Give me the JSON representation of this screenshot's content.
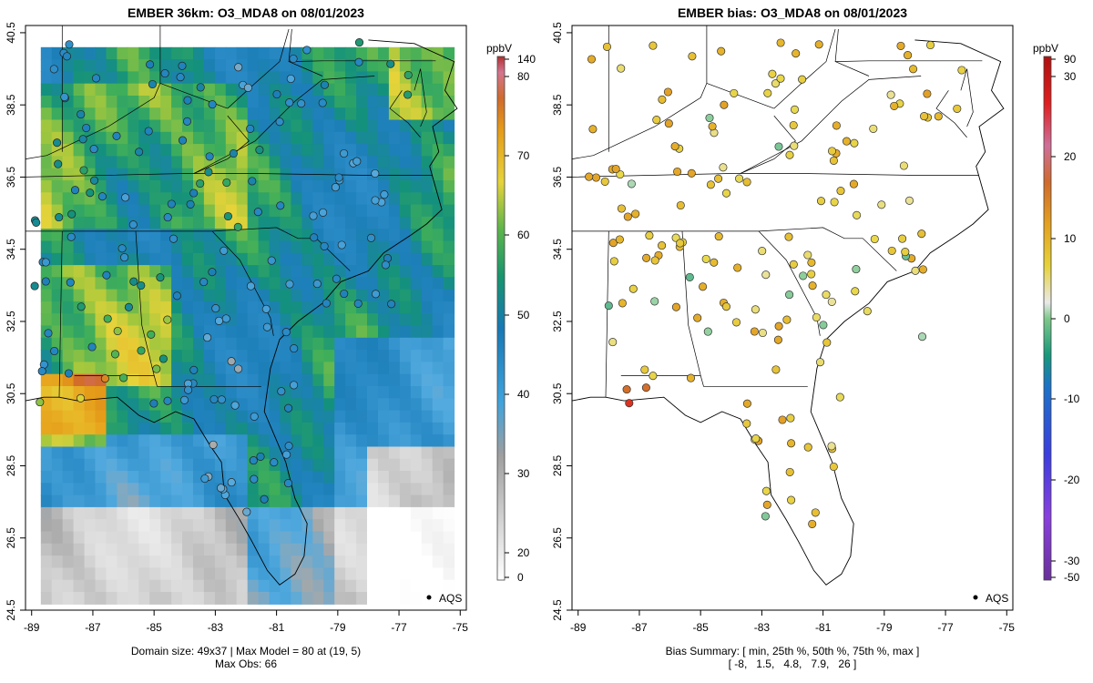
{
  "chart_data": [
    {
      "type": "heatmap",
      "title": "EMBER 36km: O3_MDA8 on 08/01/2023",
      "x_ticks": [
        "-89",
        "-87",
        "-85",
        "-83",
        "-81",
        "-79",
        "-77",
        "-75"
      ],
      "y_ticks": [
        "24.5",
        "26.5",
        "28.5",
        "30.5",
        "32.5",
        "34.5",
        "36.5",
        "38.5",
        "40.5"
      ],
      "xlim": [
        -89.2,
        -74.8
      ],
      "ylim": [
        24.5,
        40.7
      ],
      "colorbar": {
        "unit": "ppbV",
        "ticks": [
          "0",
          "20",
          "30",
          "40",
          "50",
          "60",
          "70",
          "80",
          "140"
        ],
        "stops": [
          "#ffffff",
          "#9e9e9e",
          "#3fa3dc",
          "#1778b5",
          "#17956e",
          "#5cb54a",
          "#e6d33a",
          "#e59b18",
          "#d06a2c",
          "#d4748f",
          "#b03030"
        ]
      },
      "legend": [
        "AQS"
      ],
      "footer": [
        "Domain size: 49x37 | Max Model = 80 at (19, 5)",
        "Max Obs: 66"
      ],
      "grid": false
    },
    {
      "type": "scatter",
      "title": "EMBER bias: O3_MDA8 on 08/01/2023",
      "x_ticks": [
        "-89",
        "-87",
        "-85",
        "-83",
        "-81",
        "-79",
        "-77",
        "-75"
      ],
      "y_ticks": [
        "24.5",
        "26.5",
        "28.5",
        "30.5",
        "32.5",
        "34.5",
        "36.5",
        "38.5",
        "40.5"
      ],
      "xlim": [
        -89.2,
        -74.8
      ],
      "ylim": [
        24.5,
        40.7
      ],
      "colorbar": {
        "unit": "ppbV",
        "ticks": [
          "-50",
          "-30",
          "-20",
          "-10",
          "0",
          "10",
          "20",
          "30",
          "90"
        ],
        "stops": [
          "#6a2f9c",
          "#8a3fe0",
          "#3a3ee0",
          "#1b72c9",
          "#16997a",
          "#7fc98a",
          "#e9e9e9",
          "#e6d23a",
          "#e4a020",
          "#d06a2c",
          "#cf6f9a",
          "#e01e1e",
          "#b01010"
        ]
      },
      "legend": [
        "AQS"
      ],
      "footer": [
        "Bias Summary: [ min, 25th %, 50th %, 75th %, max ]",
        "[ -8,   1.5,   4.8,   7.9,   26 ]"
      ],
      "bias_summary": {
        "min": -8,
        "p25": 1.5,
        "p50": 4.8,
        "p75": 7.9,
        "max": 26
      },
      "grid": false
    }
  ]
}
